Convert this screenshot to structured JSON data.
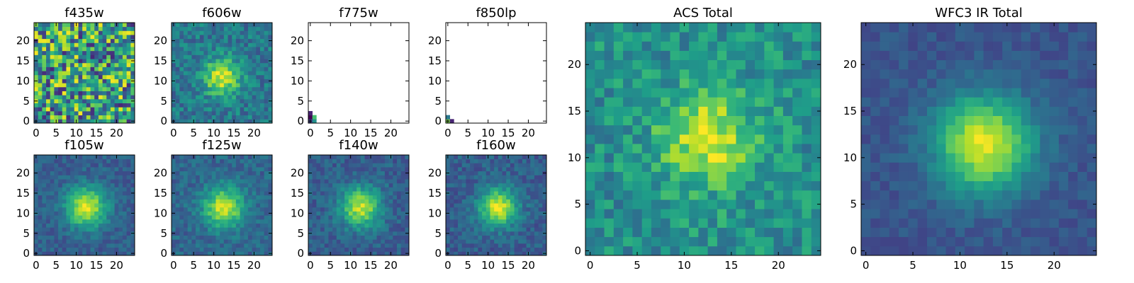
{
  "chart_data": [
    {
      "type": "heatmap",
      "title": "f435w",
      "pattern": "noise",
      "seed": 11,
      "base": 0.55,
      "noise": 0.55,
      "xticks": [
        0,
        5,
        10,
        15,
        20
      ],
      "yticks": [
        0,
        5,
        10,
        15,
        20
      ],
      "xlim": [
        0,
        25
      ],
      "ylim": [
        0,
        25
      ],
      "colormap": "viridis"
    },
    {
      "type": "heatmap",
      "title": "f606w",
      "pattern": "blob",
      "seed": 23,
      "cx": 12,
      "cy": 11,
      "sigma": 3.2,
      "amp": 0.55,
      "base": 0.4,
      "noise": 0.3,
      "xticks": [
        0,
        5,
        10,
        15,
        20
      ],
      "yticks": [
        0,
        5,
        10,
        15,
        20
      ],
      "xlim": [
        0,
        25
      ],
      "ylim": [
        0,
        25
      ],
      "colormap": "viridis"
    },
    {
      "type": "heatmap",
      "title": "f775w",
      "pattern": "corner",
      "corner_cells": [
        [
          0,
          0,
          0.2
        ],
        [
          1,
          0,
          0.5
        ],
        [
          0,
          1,
          0.0
        ],
        [
          1,
          1,
          0.7
        ],
        [
          0,
          2,
          0.1
        ]
      ],
      "xticks": [
        0,
        5,
        10,
        15,
        20
      ],
      "yticks": [
        0,
        5,
        10,
        15,
        20
      ],
      "xlim": [
        0,
        25
      ],
      "ylim": [
        0,
        25
      ],
      "colormap": "viridis"
    },
    {
      "type": "heatmap",
      "title": "f850lp",
      "pattern": "corner",
      "corner_cells": [
        [
          0,
          0,
          0.8
        ],
        [
          1,
          0,
          0.1
        ],
        [
          0,
          1,
          0.4
        ]
      ],
      "xticks": [
        0,
        5,
        10,
        15,
        20
      ],
      "yticks": [
        0,
        5,
        10,
        15,
        20
      ],
      "xlim": [
        0,
        25
      ],
      "ylim": [
        0,
        25
      ],
      "colormap": "viridis"
    },
    {
      "type": "heatmap",
      "title": "f105w",
      "pattern": "blob",
      "seed": 37,
      "cx": 12.5,
      "cy": 11.5,
      "sigma": 3.5,
      "amp": 0.65,
      "base": 0.3,
      "noise": 0.18,
      "xticks": [
        0,
        5,
        10,
        15,
        20
      ],
      "yticks": [
        0,
        5,
        10,
        15,
        20
      ],
      "xlim": [
        0,
        25
      ],
      "ylim": [
        0,
        25
      ],
      "colormap": "viridis"
    },
    {
      "type": "heatmap",
      "title": "f125w",
      "pattern": "blob",
      "seed": 41,
      "cx": 12.5,
      "cy": 11.5,
      "sigma": 3.5,
      "amp": 0.6,
      "base": 0.33,
      "noise": 0.2,
      "xticks": [
        0,
        5,
        10,
        15,
        20
      ],
      "yticks": [
        0,
        5,
        10,
        15,
        20
      ],
      "xlim": [
        0,
        25
      ],
      "ylim": [
        0,
        25
      ],
      "colormap": "viridis"
    },
    {
      "type": "heatmap",
      "title": "f140w",
      "pattern": "blob",
      "seed": 53,
      "cx": 12.5,
      "cy": 11.5,
      "sigma": 3.5,
      "amp": 0.6,
      "base": 0.3,
      "noise": 0.2,
      "xticks": [
        0,
        5,
        10,
        15,
        20
      ],
      "yticks": [
        0,
        5,
        10,
        15,
        20
      ],
      "xlim": [
        0,
        25
      ],
      "ylim": [
        0,
        25
      ],
      "colormap": "viridis"
    },
    {
      "type": "heatmap",
      "title": "f160w",
      "pattern": "blob",
      "seed": 67,
      "cx": 12.5,
      "cy": 11.5,
      "sigma": 3.3,
      "amp": 0.65,
      "base": 0.3,
      "noise": 0.2,
      "xticks": [
        0,
        5,
        10,
        15,
        20
      ],
      "yticks": [
        0,
        5,
        10,
        15,
        20
      ],
      "xlim": [
        0,
        25
      ],
      "ylim": [
        0,
        25
      ],
      "colormap": "viridis"
    },
    {
      "type": "heatmap",
      "title": "ACS Total",
      "pattern": "blob",
      "seed": 79,
      "cx": 12.5,
      "cy": 12,
      "sigma": 3.5,
      "amp": 0.45,
      "base": 0.5,
      "noise": 0.32,
      "xticks": [
        0,
        5,
        10,
        15,
        20
      ],
      "yticks": [
        0,
        5,
        10,
        15,
        20
      ],
      "xlim": [
        0,
        25
      ],
      "ylim": [
        0,
        25
      ],
      "colormap": "viridis"
    },
    {
      "type": "heatmap",
      "title": "WFC3 IR Total",
      "pattern": "blob",
      "seed": 97,
      "cx": 12.5,
      "cy": 11.5,
      "sigma": 3.6,
      "amp": 0.7,
      "base": 0.26,
      "noise": 0.12,
      "xticks": [
        0,
        5,
        10,
        15,
        20
      ],
      "yticks": [
        0,
        5,
        10,
        15,
        20
      ],
      "xlim": [
        0,
        25
      ],
      "ylim": [
        0,
        25
      ],
      "colormap": "viridis"
    }
  ]
}
